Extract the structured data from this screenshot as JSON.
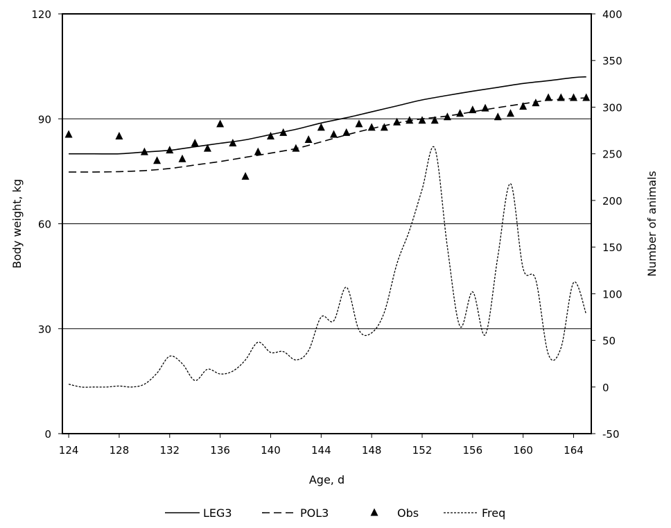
{
  "chart_data": {
    "type": "line",
    "title": "",
    "xlabel": "Age, d",
    "ylabel": "Body weight, kg",
    "y2label": "Number of animals",
    "xlim": [
      123.5,
      165.4
    ],
    "ylim": [
      0,
      120
    ],
    "y2lim": [
      -50,
      400
    ],
    "xticks": [
      "124",
      "128",
      "132",
      "136",
      "140",
      "144",
      "148",
      "152",
      "156",
      "160",
      "164"
    ],
    "yticks": [
      "0",
      "30",
      "60",
      "90",
      "120"
    ],
    "y2ticks": [
      "-50",
      "0",
      "50",
      "100",
      "150",
      "200",
      "250",
      "300",
      "350",
      "400"
    ],
    "gridlines_y": [
      30,
      60,
      90
    ],
    "series": [
      {
        "name": "LEG3",
        "axis": "left",
        "style": "solid",
        "x": [
          124,
          126,
          128,
          130,
          132,
          134,
          136,
          138,
          140,
          142,
          144,
          146,
          148,
          150,
          152,
          154,
          156,
          158,
          160,
          162,
          164,
          165
        ],
        "values": [
          80,
          80,
          80,
          80.5,
          81,
          82,
          83,
          84,
          85.5,
          87,
          88.8,
          90.3,
          92,
          93.7,
          95.4,
          96.7,
          97.9,
          99,
          100.1,
          100.9,
          101.8,
          102
        ]
      },
      {
        "name": "POL3",
        "axis": "left",
        "style": "dashed",
        "x": [
          124,
          126,
          128,
          130,
          132,
          134,
          136,
          138,
          140,
          142,
          144,
          146,
          148,
          150,
          152,
          154,
          156,
          158,
          160,
          162,
          164,
          165
        ],
        "values": [
          74.8,
          74.8,
          74.9,
          75.2,
          75.8,
          76.8,
          77.8,
          79,
          80.2,
          81.5,
          83.4,
          85.4,
          87.2,
          88.8,
          90,
          90.8,
          92,
          93.2,
          94.3,
          95.3,
          95.8,
          96
        ]
      },
      {
        "name": "Obs",
        "axis": "left",
        "style": "triangle",
        "x": [
          124,
          128,
          130,
          131,
          132,
          133,
          134,
          135,
          136,
          137,
          138,
          139,
          140,
          141,
          142,
          143,
          144,
          145,
          146,
          147,
          148,
          149,
          150,
          151,
          152,
          153,
          154,
          155,
          156,
          157,
          158,
          159,
          160,
          161,
          162,
          163,
          164,
          165
        ],
        "values": [
          85.5,
          85,
          80.5,
          78,
          81,
          78.5,
          83,
          81.5,
          88.5,
          83,
          73.5,
          80.5,
          85,
          86,
          81.5,
          84,
          87.5,
          85.5,
          86,
          88.5,
          87.5,
          87.5,
          89,
          89.5,
          89.5,
          89.5,
          90.5,
          91.5,
          92.5,
          93,
          90.5,
          91.5,
          93.5,
          94.5,
          96,
          96,
          96,
          96
        ]
      },
      {
        "name": "Freq",
        "axis": "right",
        "style": "dotted",
        "x": [
          124,
          125,
          126,
          127,
          128,
          129,
          130,
          131,
          132,
          133,
          134,
          135,
          136,
          137,
          138,
          139,
          140,
          141,
          142,
          143,
          144,
          145,
          146,
          147,
          148,
          149,
          150,
          151,
          152,
          153,
          154,
          155,
          156,
          157,
          158,
          159,
          160,
          161,
          162,
          163,
          164,
          165
        ],
        "values": [
          3,
          0,
          0,
          0,
          1,
          0,
          3,
          15,
          33,
          25,
          7,
          19,
          14,
          17,
          29,
          48,
          37,
          38,
          29,
          39,
          75,
          71,
          107,
          61,
          58,
          80,
          132,
          168,
          212,
          256,
          150,
          65,
          102,
          56,
          140,
          218,
          127,
          115,
          35,
          42,
          112,
          78
        ]
      }
    ],
    "legend": [
      "LEG3",
      "POL3",
      "Obs",
      "Freq"
    ],
    "legend_position": "bottom"
  }
}
